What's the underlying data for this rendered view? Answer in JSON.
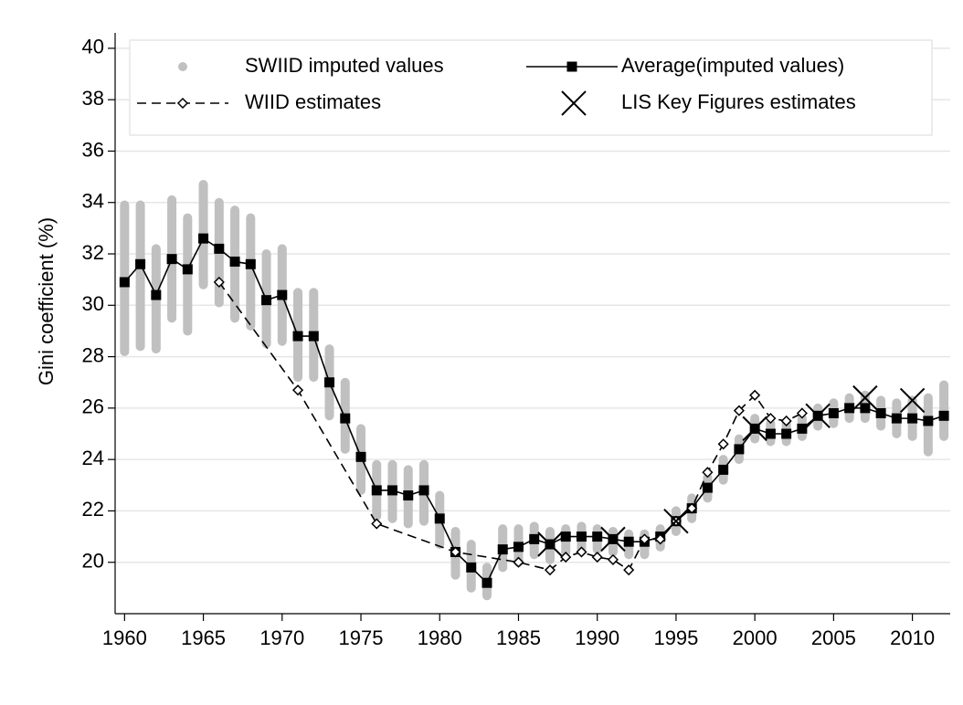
{
  "chart_data": {
    "type": "line",
    "y_label": "Gini coefficient (%)",
    "xlim": [
      1959.4,
      2012.4
    ],
    "ylim": [
      18,
      40.6
    ],
    "xticks": [
      1960,
      1965,
      1970,
      1975,
      1980,
      1985,
      1990,
      1995,
      2000,
      2005,
      2010
    ],
    "yticks": [
      20,
      22,
      24,
      26,
      28,
      30,
      32,
      34,
      36,
      38,
      40
    ],
    "grid": true,
    "series": [
      {
        "name": "SWIID imputed values",
        "type": "range",
        "color": "#c0c0c0",
        "x": [
          1960,
          1961,
          1962,
          1963,
          1964,
          1965,
          1966,
          1967,
          1968,
          1969,
          1970,
          1971,
          1972,
          1973,
          1974,
          1975,
          1976,
          1977,
          1978,
          1979,
          1980,
          1981,
          1982,
          1983,
          1984,
          1985,
          1986,
          1987,
          1988,
          1989,
          1990,
          1991,
          1992,
          1993,
          1994,
          1995,
          1996,
          1997,
          1998,
          1999,
          2000,
          2001,
          2002,
          2003,
          2004,
          2005,
          2006,
          2007,
          2008,
          2009,
          2010,
          2011,
          2012
        ],
        "low": [
          28.2,
          28.4,
          28.3,
          29.5,
          29.0,
          30.8,
          30.1,
          29.5,
          29.2,
          28.5,
          28.6,
          27.2,
          27.2,
          25.7,
          24.4,
          22.8,
          21.8,
          21.7,
          21.5,
          21.6,
          20.7,
          19.5,
          19.0,
          18.7,
          19.8,
          20.0,
          20.3,
          20.1,
          20.4,
          20.5,
          20.5,
          20.4,
          20.3,
          20.3,
          20.6,
          21.2,
          21.7,
          22.5,
          23.2,
          24.0,
          24.8,
          24.7,
          24.7,
          24.9,
          25.3,
          25.4,
          25.6,
          25.6,
          25.3,
          25.0,
          24.9,
          24.3,
          24.9
        ],
        "high": [
          33.9,
          33.9,
          32.2,
          34.1,
          33.4,
          34.7,
          34.0,
          33.7,
          33.4,
          32.0,
          32.2,
          30.5,
          30.5,
          28.3,
          27.0,
          25.2,
          23.8,
          23.8,
          23.6,
          23.8,
          22.6,
          21.2,
          20.7,
          19.8,
          21.3,
          21.3,
          21.4,
          21.2,
          21.3,
          21.4,
          21.3,
          21.2,
          21.1,
          21.1,
          21.3,
          22.0,
          22.5,
          23.3,
          24.0,
          24.8,
          25.6,
          25.4,
          25.4,
          25.6,
          26.0,
          26.2,
          26.4,
          26.5,
          26.3,
          26.2,
          26.3,
          26.4,
          26.9
        ]
      },
      {
        "name": "Average(imputed values)",
        "type": "line",
        "marker": "square",
        "color": "#000000",
        "x": [
          1960,
          1961,
          1962,
          1963,
          1964,
          1965,
          1966,
          1967,
          1968,
          1969,
          1970,
          1971,
          1972,
          1973,
          1974,
          1975,
          1976,
          1977,
          1978,
          1979,
          1980,
          1981,
          1982,
          1983,
          1984,
          1985,
          1986,
          1987,
          1988,
          1989,
          1990,
          1991,
          1992,
          1993,
          1994,
          1995,
          1996,
          1997,
          1998,
          1999,
          2000,
          2001,
          2002,
          2003,
          2004,
          2005,
          2006,
          2007,
          2008,
          2009,
          2010,
          2011,
          2012
        ],
        "values": [
          30.9,
          31.6,
          30.4,
          31.8,
          31.4,
          32.6,
          32.2,
          31.7,
          31.6,
          30.2,
          30.4,
          28.8,
          28.8,
          27.0,
          25.6,
          24.1,
          22.8,
          22.8,
          22.6,
          22.8,
          21.7,
          20.4,
          19.8,
          19.2,
          20.5,
          20.6,
          20.9,
          20.7,
          21.0,
          21.0,
          21.0,
          20.9,
          20.8,
          20.8,
          21.0,
          21.6,
          22.1,
          22.9,
          23.6,
          24.4,
          25.2,
          25.0,
          25.0,
          25.2,
          25.7,
          25.8,
          26.0,
          26.0,
          25.8,
          25.6,
          25.6,
          25.5,
          25.7
        ]
      },
      {
        "name": "WIID estimates",
        "type": "line",
        "marker": "diamond",
        "dash": true,
        "color": "#000000",
        "x": [
          1966,
          1971,
          1976,
          1981,
          1985,
          1987,
          1988,
          1989,
          1990,
          1991,
          1992,
          1993,
          1994,
          1995,
          1996,
          1997,
          1998,
          1999,
          2000,
          2001,
          2002,
          2003
        ],
        "values": [
          30.9,
          26.7,
          21.5,
          20.4,
          20.0,
          19.7,
          20.2,
          20.4,
          20.2,
          20.1,
          19.7,
          20.9,
          20.9,
          21.6,
          22.1,
          23.5,
          24.6,
          25.9,
          26.5,
          25.6,
          25.5,
          25.8
        ]
      },
      {
        "name": "LIS Key Figures estimates",
        "type": "scatter",
        "marker": "cross",
        "color": "#000000",
        "x": [
          1987,
          1991,
          1995,
          2000,
          2004,
          2007,
          2010
        ],
        "values": [
          20.7,
          20.9,
          21.6,
          25.2,
          25.7,
          26.4,
          26.3
        ]
      }
    ]
  }
}
